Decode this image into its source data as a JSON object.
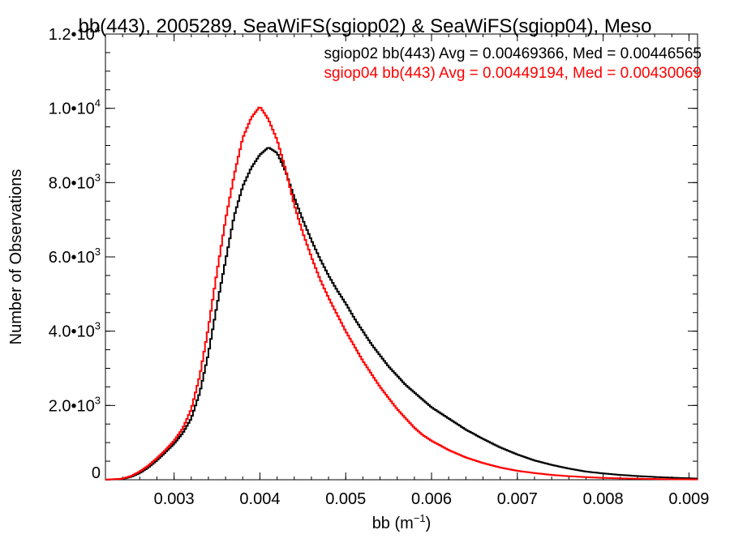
{
  "chart_data": {
    "type": "line",
    "title": "bb(443), 2005289, SeaWiFS(sgiop02) & SeaWiFS(sgiop04), Meso",
    "xlabel": "bb (m",
    "xlabel_exp": "−1",
    "xlabel_close": ")",
    "ylabel": "Number of Observations",
    "xlim": [
      0.0022,
      0.0091
    ],
    "ylim": [
      0,
      12000
    ],
    "x_ticks": [
      0.003,
      0.004,
      0.005,
      0.006,
      0.007,
      0.008,
      0.009
    ],
    "x_tick_labels": [
      "0.003",
      "0.004",
      "0.005",
      "0.006",
      "0.007",
      "0.008",
      "0.009"
    ],
    "y_ticks": [
      0,
      2000,
      4000,
      6000,
      8000,
      10000,
      12000
    ],
    "y_tick_labels": [
      {
        "mant": "0",
        "exp": ""
      },
      {
        "mant": "2.0•10",
        "exp": "3"
      },
      {
        "mant": "4.0•10",
        "exp": "3"
      },
      {
        "mant": "6.0•10",
        "exp": "3"
      },
      {
        "mant": "8.0•10",
        "exp": "3"
      },
      {
        "mant": "1.0•10",
        "exp": "4"
      },
      {
        "mant": "1.2•10",
        "exp": "4"
      }
    ],
    "grid": false,
    "legend_position": "top-right",
    "series": [
      {
        "name": "sgiop02 bb(443) Avg = 0.00469366, Med = 0.00446565",
        "color": "#000000",
        "x": [
          0.0022,
          0.0024,
          0.0025,
          0.0026,
          0.0027,
          0.0028,
          0.0029,
          0.003,
          0.0031,
          0.0032,
          0.0033,
          0.0034,
          0.0035,
          0.0036,
          0.0037,
          0.0038,
          0.0039,
          0.004,
          0.0041,
          0.0042,
          0.0043,
          0.0044,
          0.0045,
          0.0046,
          0.0047,
          0.0048,
          0.0049,
          0.005,
          0.0051,
          0.0052,
          0.0053,
          0.0054,
          0.0055,
          0.0056,
          0.0057,
          0.0058,
          0.0059,
          0.006,
          0.0062,
          0.0064,
          0.0066,
          0.0068,
          0.007,
          0.0072,
          0.0074,
          0.0076,
          0.0078,
          0.008,
          0.0082,
          0.0084,
          0.0086,
          0.0088,
          0.0091
        ],
        "y": [
          0,
          20,
          80,
          180,
          330,
          520,
          740,
          970,
          1250,
          1650,
          2350,
          3400,
          4700,
          5900,
          7100,
          7900,
          8400,
          8750,
          8950,
          8800,
          8300,
          7600,
          7000,
          6450,
          5950,
          5500,
          5100,
          4750,
          4350,
          4000,
          3650,
          3350,
          3050,
          2800,
          2550,
          2350,
          2150,
          1950,
          1650,
          1350,
          1100,
          870,
          680,
          520,
          400,
          300,
          220,
          170,
          130,
          100,
          75,
          55,
          30
        ]
      },
      {
        "name": "sgiop04 bb(443) Avg = 0.00449194, Med = 0.00430069",
        "color": "#ff0000",
        "x": [
          0.0022,
          0.0024,
          0.0025,
          0.0026,
          0.0027,
          0.0028,
          0.0029,
          0.003,
          0.0031,
          0.0032,
          0.0033,
          0.0034,
          0.0035,
          0.0036,
          0.0037,
          0.0038,
          0.0039,
          0.004,
          0.0041,
          0.0042,
          0.0043,
          0.0044,
          0.0045,
          0.0046,
          0.0047,
          0.0048,
          0.0049,
          0.005,
          0.0051,
          0.0052,
          0.0053,
          0.0054,
          0.0055,
          0.0056,
          0.0057,
          0.0058,
          0.0059,
          0.006,
          0.0062,
          0.0064,
          0.0066,
          0.0068,
          0.007,
          0.0072,
          0.0074,
          0.0076,
          0.0078,
          0.008,
          0.0082,
          0.0084,
          0.0086,
          0.0088,
          0.0091
        ],
        "y": [
          0,
          30,
          100,
          220,
          380,
          580,
          800,
          1050,
          1380,
          1900,
          2800,
          4100,
          5600,
          7000,
          8200,
          9200,
          9750,
          10050,
          9700,
          9150,
          8350,
          7400,
          6650,
          6000,
          5400,
          4900,
          4450,
          4000,
          3600,
          3200,
          2850,
          2500,
          2200,
          1900,
          1650,
          1400,
          1200,
          1050,
          800,
          600,
          450,
          330,
          240,
          180,
          130,
          95,
          70,
          50,
          38,
          28,
          20,
          14,
          8
        ]
      }
    ]
  }
}
